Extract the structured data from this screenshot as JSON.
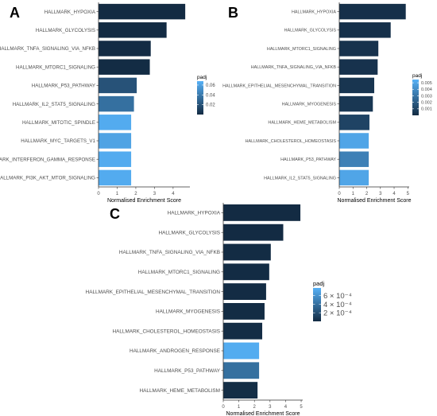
{
  "chart_data": [
    {
      "panel": "A",
      "type": "bar",
      "orientation": "horizontal",
      "xlabel": "Normalised Enrichment Score",
      "xlim": [
        0,
        5
      ],
      "xticks": [
        "0",
        "1",
        "2",
        "3",
        "4"
      ],
      "categories": [
        "HALLMARK_HYPOXIA",
        "HALLMARK_GLYCOLYSIS",
        "HALLMARK_TNFA_SIGNALING_VIA_NFKB",
        "HALLMARK_MTORC1_SIGNALING",
        "HALLMARK_P53_PATHWAY",
        "HALLMARK_IL2_STAT5_SIGNALING",
        "HALLMARK_MITOTIC_SPINDLE",
        "HALLMARK_MYC_TARGETS_V1",
        "HALLMARK_INTERFERON_GAMMA_RESPONSE",
        "HALLMARK_PI3K_AKT_MTOR_SIGNALING"
      ],
      "values": [
        4.65,
        3.65,
        2.8,
        2.75,
        2.05,
        1.9,
        1.75,
        1.75,
        1.75,
        1.75
      ],
      "padj": [
        0.0001,
        0.0001,
        0.0002,
        0.0003,
        0.02,
        0.035,
        0.065,
        0.061,
        0.065,
        0.065
      ],
      "legend": {
        "title": "padj",
        "position": "right",
        "ticks": [
          "0.06",
          "0.04",
          "0.02"
        ],
        "tick_values": [
          0.06,
          0.04,
          0.02
        ],
        "range": [
          0,
          0.068
        ]
      }
    },
    {
      "panel": "B",
      "type": "bar",
      "orientation": "horizontal",
      "xlabel": "Normalised Enrichment Score",
      "xlim": [
        0,
        5
      ],
      "xticks": [
        "0",
        "1",
        "2",
        "3",
        "4",
        "5"
      ],
      "categories": [
        "HALLMARK_HYPOXIA",
        "HALLMARK_GLYCOLYSIS",
        "HALLMARK_MTORC1_SIGNALING",
        "HALLMARK_TNFA_SIGNALING_VIA_NFKB",
        "HALLMARK_EPITHELIAL_MESENCHYMAL_TRANSITION",
        "HALLMARK_MYOGENESIS",
        "HALLMARK_HEME_METABOLISM",
        "HALLMARK_CHOLESTEROL_HOMEOSTASIS",
        "HALLMARK_P53_PATHWAY",
        "HALLMARK_IL2_STAT5_SIGNALING"
      ],
      "values": [
        4.85,
        3.75,
        2.85,
        2.8,
        2.55,
        2.45,
        2.2,
        2.15,
        2.15,
        2.15
      ],
      "padj": [
        0.0002,
        0.0002,
        0.0003,
        0.0003,
        0.0004,
        0.0005,
        0.001,
        0.005,
        0.0035,
        0.005
      ],
      "legend": {
        "title": "padj",
        "position": "right",
        "ticks": [
          "0.005",
          "0.004",
          "0.003",
          "0.002",
          "0.001"
        ],
        "tick_values": [
          0.005,
          0.004,
          0.003,
          0.002,
          0.001
        ],
        "range": [
          0,
          0.0055
        ]
      }
    },
    {
      "panel": "C",
      "type": "bar",
      "orientation": "horizontal",
      "xlabel": "Normalised Enrichment Score",
      "xlim": [
        0,
        5
      ],
      "xticks": [
        "0",
        "1",
        "2",
        "3",
        "4",
        "5"
      ],
      "categories": [
        "HALLMARK_HYPOXIA",
        "HALLMARK_GLYCOLYSIS",
        "HALLMARK_TNFA_SIGNALING_VIA_NFKB",
        "HALLMARK_MTORC1_SIGNALING",
        "HALLMARK_EPITHELIAL_MESENCHYMAL_TRANSITION",
        "HALLMARK_MYOGENESIS",
        "HALLMARK_CHOLESTEROL_HOMEOSTASIS",
        "HALLMARK_ANDROGEN_RESPONSE",
        "HALLMARK_P53_PATHWAY",
        "HALLMARK_HEME_METABOLISM"
      ],
      "values": [
        4.95,
        3.85,
        3.05,
        2.95,
        2.75,
        2.65,
        2.5,
        2.3,
        2.3,
        2.2
      ],
      "padj": [
        2e-06,
        2e-06,
        3e-06,
        3e-06,
        4e-06,
        5e-06,
        1e-05,
        0.00075,
        0.0004,
        1.5e-05
      ],
      "legend": {
        "title": "padj",
        "position": "right",
        "ticks": [
          "6 × 10⁻⁴",
          "4 × 10⁻⁴",
          "2 × 10⁻⁴"
        ],
        "tick_values": [
          0.0006,
          0.0004,
          0.0002
        ],
        "range": [
          0,
          0.00078
        ]
      }
    }
  ],
  "colors": {
    "low": "#132b43",
    "high": "#56b1f7",
    "axis": "#333333",
    "text": "#4d4d4d"
  }
}
